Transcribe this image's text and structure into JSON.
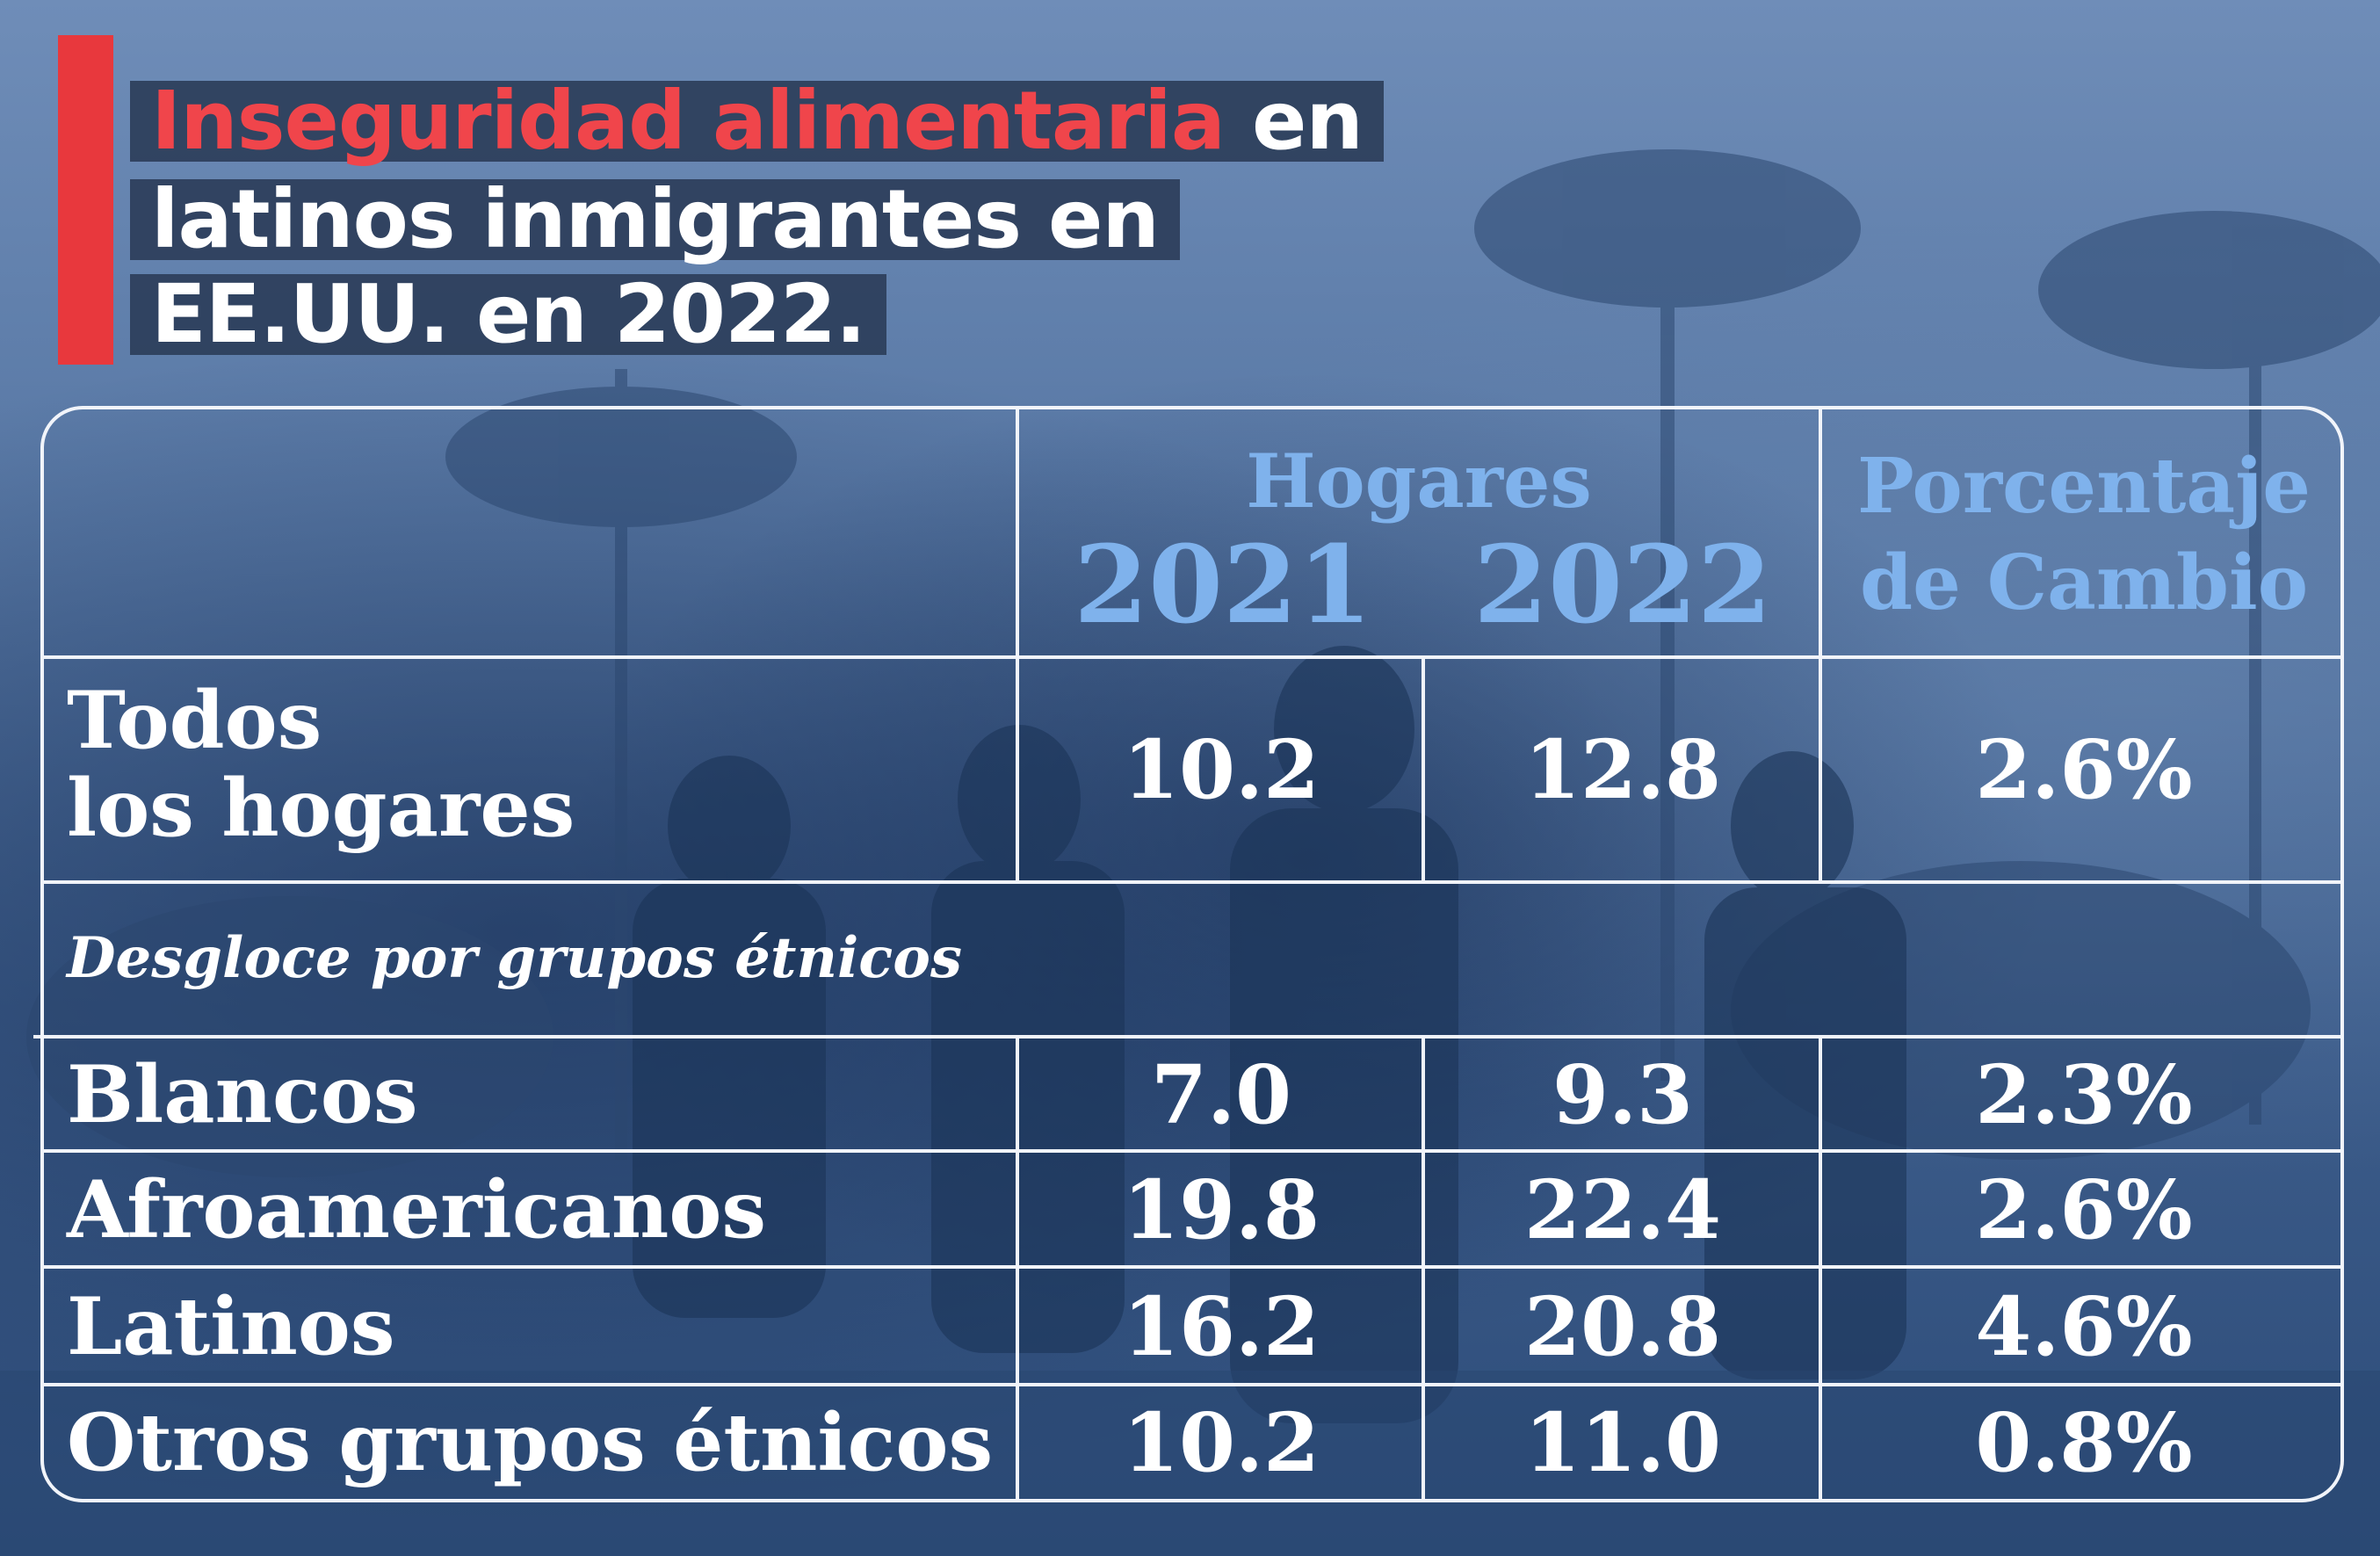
{
  "title": {
    "line1_highlight": "Inseguridad alimentaria",
    "line1_rest": " en",
    "line2": "latinos inmigrantes en",
    "line3": "EE.UU. en 2022."
  },
  "header": {
    "group_label": "Hogares",
    "year1": "2021",
    "year2": "2022",
    "change_line1": "Porcentaje",
    "change_line2": "de Cambio"
  },
  "summary_row": {
    "label_line1": "Todos",
    "label_line2": "los hogares",
    "v2021": "10.2",
    "v2022": "12.8",
    "change": "2.6%"
  },
  "breakdown_label": "Desgloce por grupos étnicos",
  "rows": [
    {
      "label": "Blancos",
      "v2021": "7.0",
      "v2022": "9.3",
      "change": "2.3%"
    },
    {
      "label": "Afroamericanos",
      "v2021": "19.8",
      "v2022": "22.4",
      "change": "2.6%"
    },
    {
      "label": "Latinos",
      "v2021": "16.2",
      "v2022": "20.8",
      "change": "4.6%"
    },
    {
      "label": "Otros grupos étnicos",
      "v2021": "10.2",
      "v2022": "11.0",
      "change": "0.8%"
    }
  ],
  "colors": {
    "accent_red": "#e8383d",
    "header_blue": "#7fb2ec",
    "title_box": "#2d3e5a",
    "table_lines": "#f1f4fa"
  }
}
